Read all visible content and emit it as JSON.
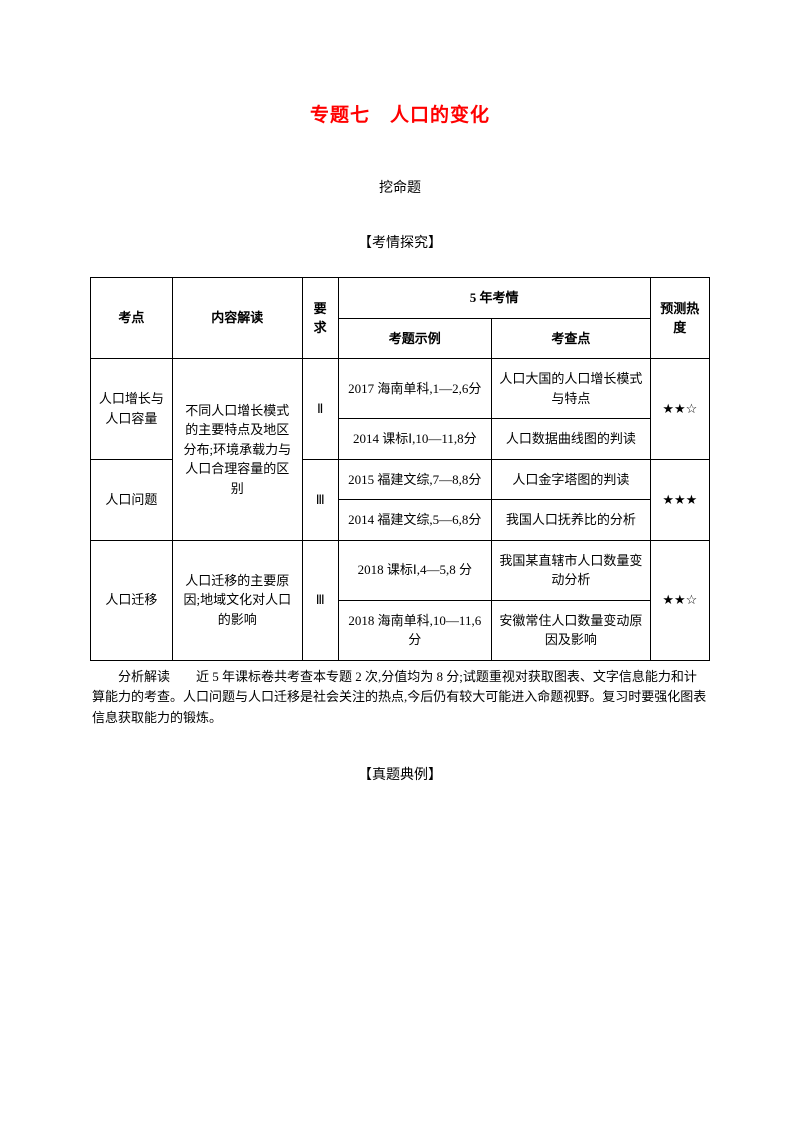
{
  "title": "专题七　人口的变化",
  "subtitle": "挖命题",
  "section_header": "【考情探究】",
  "table": {
    "headers": {
      "kaodian": "考点",
      "neirong": "内容解读",
      "yaoqiu": "要求",
      "wunian": "5 年考情",
      "kaoti": "考题示例",
      "kaochadian": "考查点",
      "yuce": "预测热度"
    },
    "rows": [
      {
        "kaodian": "人口增长与人口容量",
        "neirong": "不同人口增长模式的主要特点及地区分布;环境承载力与人口合理容量的区别",
        "yaoqiu": "Ⅱ",
        "items": [
          {
            "kaoti": "2017 海南单科,1—2,6分",
            "kaochadian": "人口大国的人口增长模式与特点"
          },
          {
            "kaoti": "2014 课标Ⅰ,10—11,8分",
            "kaochadian": "人口数据曲线图的判读"
          }
        ],
        "yuce": "★★☆"
      },
      {
        "kaodian": "人口问题",
        "yaoqiu": "Ⅲ",
        "items": [
          {
            "kaoti": "2015 福建文综,7—8,8分",
            "kaochadian": "人口金字塔图的判读"
          },
          {
            "kaoti": "2014 福建文综,5—6,8分",
            "kaochadian": "我国人口抚养比的分析"
          }
        ],
        "yuce": "★★★"
      },
      {
        "kaodian": "人口迁移",
        "neirong": "人口迁移的主要原因;地域文化对人口的影响",
        "yaoqiu": "Ⅲ",
        "items": [
          {
            "kaoti": "2018 课标Ⅰ,4—5,8 分",
            "kaochadian": "我国某直辖市人口数量变动分析"
          },
          {
            "kaoti": "2018 海南单科,10—11,6 分",
            "kaochadian": "安徽常住人口数量变动原因及影响"
          }
        ],
        "yuce": "★★☆"
      }
    ]
  },
  "analysis": {
    "label": "分析解读　　",
    "text": "近 5 年课标卷共考查本专题 2 次,分值均为 8 分;试题重视对获取图表、文字信息能力和计算能力的考查。人口问题与人口迁移是社会关注的热点,今后仍有较大可能进入命题视野。复习时要强化图表信息获取能力的锻炼。"
  },
  "examples_header": "【真题典例】"
}
